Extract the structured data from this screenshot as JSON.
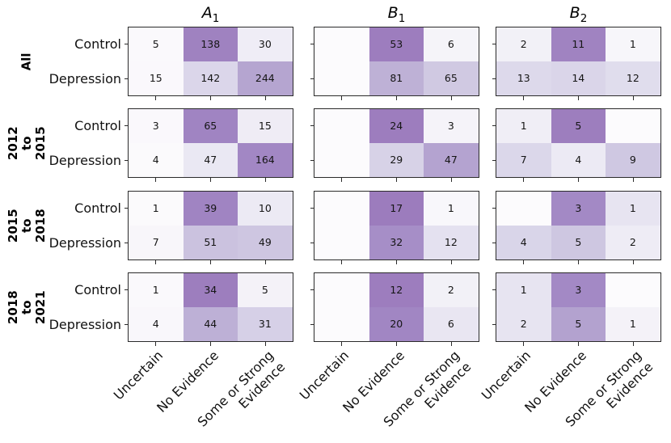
{
  "figure": {
    "background": "#ffffff",
    "axes_edge_color": "#2b2b2b",
    "annotation_text_color": "#151515",
    "colormap_name": "purple-sequential",
    "colormap_stops": [
      [
        0.0,
        "#fcfbfd"
      ],
      [
        0.15,
        "#f2f0f7"
      ],
      [
        0.3,
        "#e1deee"
      ],
      [
        0.45,
        "#cfc8e2"
      ],
      [
        0.6,
        "#b6a7d1"
      ],
      [
        0.75,
        "#a389c5"
      ],
      [
        0.82,
        "#9d7ebe"
      ],
      [
        1.0,
        "#9c7bbd"
      ]
    ]
  },
  "chart_data": {
    "type": "heatmap",
    "layout_hint": "4 row-groups x 3 annotated 2x3 matrices; cell shading = value / row sum; x tick labels rotated 45deg, only on bottom row; y tick labels only on left column",
    "cell_shading": "row-proportion (value divided by row sum)",
    "columns": [
      {
        "name": "A",
        "subscript": "1"
      },
      {
        "name": "B",
        "subscript": "1"
      },
      {
        "name": "B",
        "subscript": "2"
      }
    ],
    "row_groups": [
      "All",
      "2012 to\n2015",
      "2015 to\n2018",
      "2018 to\n2021"
    ],
    "y_labels": [
      "Control",
      "Depression"
    ],
    "x_labels": [
      "Uncertain",
      "No Evidence",
      "Some or Strong\nEvidence"
    ],
    "panels": [
      {
        "group": "All",
        "column": "A1",
        "values": [
          [
            5,
            138,
            30
          ],
          [
            15,
            142,
            244
          ]
        ]
      },
      {
        "group": "All",
        "column": "B1",
        "values": [
          [
            null,
            53,
            6
          ],
          [
            null,
            81,
            65
          ]
        ]
      },
      {
        "group": "All",
        "column": "B2",
        "values": [
          [
            2,
            11,
            1
          ],
          [
            13,
            14,
            12
          ]
        ]
      },
      {
        "group": "2012 to 2015",
        "column": "A1",
        "values": [
          [
            3,
            65,
            15
          ],
          [
            4,
            47,
            164
          ]
        ]
      },
      {
        "group": "2012 to 2015",
        "column": "B1",
        "values": [
          [
            null,
            24,
            3
          ],
          [
            null,
            29,
            47
          ]
        ]
      },
      {
        "group": "2012 to 2015",
        "column": "B2",
        "values": [
          [
            1,
            5,
            null
          ],
          [
            7,
            4,
            9
          ]
        ]
      },
      {
        "group": "2015 to 2018",
        "column": "A1",
        "values": [
          [
            1,
            39,
            10
          ],
          [
            7,
            51,
            49
          ]
        ]
      },
      {
        "group": "2015 to 2018",
        "column": "B1",
        "values": [
          [
            null,
            17,
            1
          ],
          [
            null,
            32,
            12
          ]
        ]
      },
      {
        "group": "2015 to 2018",
        "column": "B2",
        "values": [
          [
            null,
            3,
            1
          ],
          [
            4,
            5,
            2
          ]
        ]
      },
      {
        "group": "2018 to 2021",
        "column": "A1",
        "values": [
          [
            1,
            34,
            5
          ],
          [
            4,
            44,
            31
          ]
        ]
      },
      {
        "group": "2018 to 2021",
        "column": "B1",
        "values": [
          [
            null,
            12,
            2
          ],
          [
            null,
            20,
            6
          ]
        ]
      },
      {
        "group": "2018 to 2021",
        "column": "B2",
        "values": [
          [
            1,
            3,
            null
          ],
          [
            2,
            5,
            1
          ]
        ]
      }
    ]
  }
}
